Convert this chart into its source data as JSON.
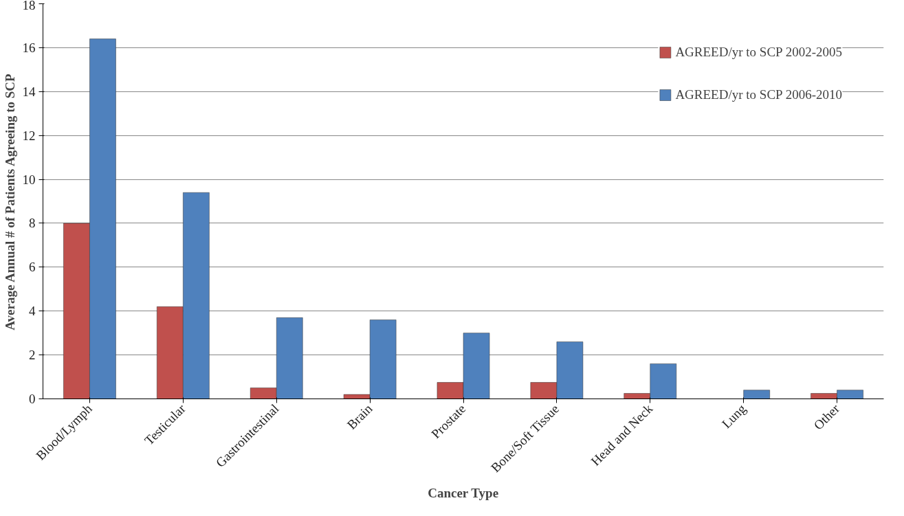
{
  "chart_data": {
    "type": "bar",
    "xlabel": "Cancer Type",
    "ylabel": "Average Annual # of Patients Agreeing to SCP",
    "categories": [
      "Blood/Lymph",
      "Testicular",
      "Gastrointestinal",
      "Brain",
      "Prostate",
      "Bone/Soft Tissue",
      "Head and Neck",
      "Lung",
      "Other"
    ],
    "series": [
      {
        "name": "AGREED/yr to SCP 2002-2005",
        "color": "#c0504d",
        "values": [
          8.0,
          4.2,
          0.5,
          0.2,
          0.75,
          0.75,
          0.25,
          null,
          0.25
        ]
      },
      {
        "name": "AGREED/yr to SCP 2006-2010",
        "color": "#4f81bd",
        "values": [
          16.4,
          9.4,
          3.7,
          3.6,
          3.0,
          2.6,
          1.6,
          0.4,
          0.4
        ]
      }
    ],
    "ylim": [
      0,
      18
    ],
    "yticks": [
      0,
      2,
      4,
      6,
      8,
      10,
      12,
      14,
      16,
      18
    ],
    "grid": "y",
    "legend": "top right"
  }
}
